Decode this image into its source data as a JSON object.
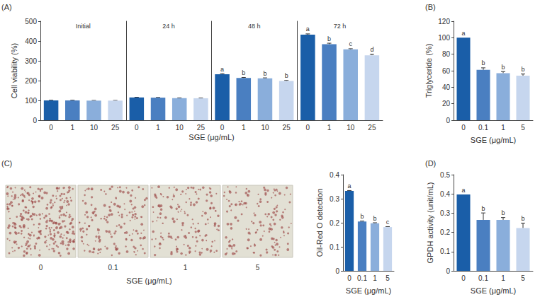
{
  "chart_data": [
    {
      "type": "bar",
      "title": "(A)",
      "groups": [
        "Initial",
        "24 h",
        "48 h",
        "72 h"
      ],
      "categories": [
        "0",
        "1",
        "10",
        "25",
        "0",
        "1",
        "10",
        "25",
        "0",
        "1",
        "10",
        "25",
        "0",
        "1",
        "10",
        "25"
      ],
      "values": [
        100,
        100,
        99,
        99,
        115,
        114,
        112,
        111,
        232,
        213,
        212,
        198,
        432,
        384,
        358,
        328
      ],
      "errors": [
        1,
        1,
        1,
        1,
        1,
        1,
        1,
        1,
        3,
        3,
        2,
        3,
        4,
        5,
        3,
        5
      ],
      "annotations": [
        null,
        null,
        null,
        null,
        null,
        null,
        null,
        null,
        "a",
        "b",
        "b",
        "b",
        "a",
        "b",
        "c",
        "d"
      ],
      "colors": [
        "#1a5ea8",
        "#4a7fc1",
        "#8aaedb",
        "#c6d6ee",
        "#1a5ea8",
        "#4a7fc1",
        "#8aaedb",
        "#c6d6ee",
        "#1a5ea8",
        "#4a7fc1",
        "#8aaedb",
        "#c6d6ee",
        "#1a5ea8",
        "#4a7fc1",
        "#8aaedb",
        "#c6d6ee"
      ],
      "xlabel": "SGE (μg/mL)",
      "ylabel": "Cell viability (%)",
      "ylim": [
        0,
        500
      ],
      "yticks": [
        0,
        100,
        200,
        300,
        400,
        500
      ],
      "grid": false
    },
    {
      "type": "bar",
      "title": "(B)",
      "categories": [
        "0",
        "0.1",
        "1",
        "5"
      ],
      "values": [
        100,
        61,
        57,
        54
      ],
      "errors": [
        0,
        2.5,
        2,
        2
      ],
      "annotations": [
        "a",
        "b",
        "b",
        "b"
      ],
      "colors": [
        "#1a5ea8",
        "#4a7fc1",
        "#8aaedb",
        "#c6d6ee"
      ],
      "xlabel": "SGE (μg/mL)",
      "ylabel": "Triglyceride (%)",
      "ylim": [
        0,
        120
      ],
      "yticks": [
        0,
        20,
        40,
        60,
        80,
        100,
        120
      ],
      "grid": false
    },
    {
      "type": "bar",
      "categories": [
        "0",
        "0.1",
        "1",
        "5"
      ],
      "values": [
        0.332,
        0.205,
        0.198,
        0.182
      ],
      "errors": [
        0.002,
        0.002,
        0.002,
        0.002
      ],
      "annotations": [
        "a",
        "b",
        "b",
        "c"
      ],
      "colors": [
        "#1a5ea8",
        "#4a7fc1",
        "#8aaedb",
        "#c6d6ee"
      ],
      "xlabel": "SGE (μg/mL)",
      "ylabel": "Oil-Red O detection",
      "ylim": [
        0,
        0.4
      ],
      "yticks": [
        0,
        0.1,
        0.2,
        0.3,
        0.4
      ],
      "grid": false
    },
    {
      "type": "bar",
      "title": "(D)",
      "categories": [
        "0",
        "0.1",
        "1",
        "5"
      ],
      "values": [
        0.397,
        0.265,
        0.265,
        0.222
      ],
      "errors": [
        0,
        0.036,
        0.012,
        0.026
      ],
      "annotations": [
        "a",
        "b",
        "b",
        "b"
      ],
      "colors": [
        "#1a5ea8",
        "#4a7fc1",
        "#8aaedb",
        "#c6d6ee"
      ],
      "xlabel": "SGE (μg/mL)",
      "ylabel": "GPDH activity (unit/mL)",
      "ylim": [
        0,
        0.5
      ],
      "yticks": [
        0,
        0.1,
        0.2,
        0.3,
        0.4,
        0.5
      ],
      "grid": false
    }
  ],
  "image_panel": {
    "title": "(C)",
    "labels": [
      "0",
      "0.1",
      "1",
      "5"
    ],
    "xlabel": "SGE (μg/mL)"
  }
}
